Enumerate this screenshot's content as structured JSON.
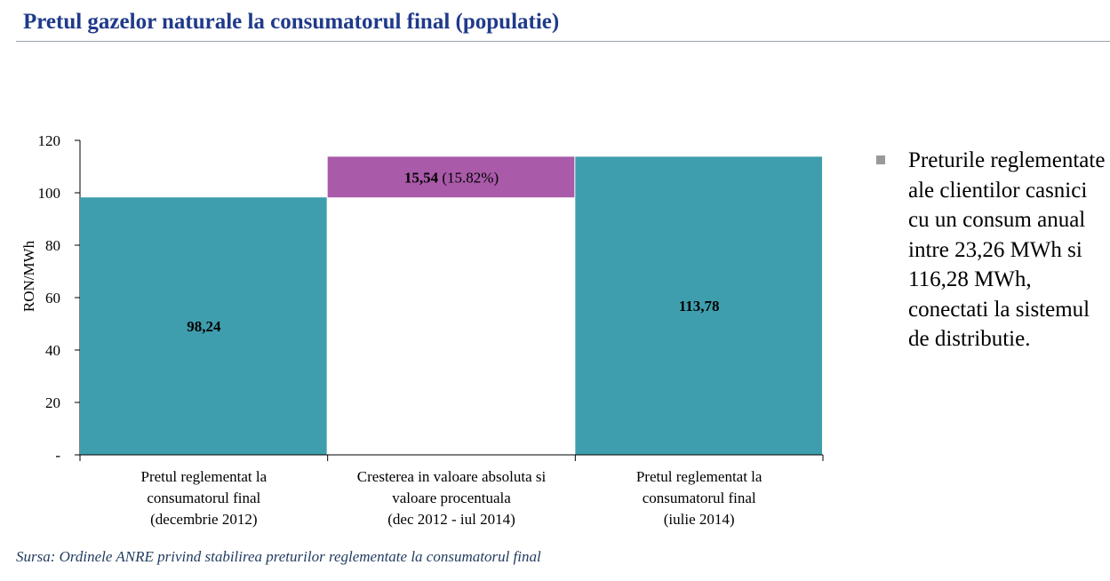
{
  "title": "Pretul gazelor naturale la consumatorul final (populatie)",
  "source": "Sursa: Ordinele ANRE privind stabilirea preturilor reglementate la consumatorul final",
  "note": "Preturile reglementate ale clientilor casnici cu un consum anual intre 23,26 MWh si 116,28 MWh, conectati la sistemul de distributie.",
  "colors": {
    "title": "#1f3a8a",
    "teal": "#3f9eae",
    "purple": "#a95aa9",
    "bullet": "#999999"
  },
  "chart_data": {
    "type": "bar",
    "subtype": "waterfall",
    "ylabel": "RON/MWh",
    "xlabel": "",
    "ylim": [
      0,
      120
    ],
    "yticks": [
      0,
      20,
      40,
      60,
      80,
      100,
      120
    ],
    "ytick_labels": [
      "-",
      "20",
      "40",
      "60",
      "80",
      "100",
      "120"
    ],
    "grid": false,
    "legend": "right",
    "categories": [
      [
        "Pretul reglementat la",
        "consumatorul final",
        "(decembrie 2012)"
      ],
      [
        "Cresterea in valoare absoluta si",
        "valoare procentuala",
        "(dec 2012 - iul 2014)"
      ],
      [
        "Pretul reglementat la",
        "consumatorul final",
        "(iulie 2014)"
      ]
    ],
    "bars": [
      {
        "base": 0,
        "value": 98.24,
        "label": "98,24",
        "color": "#3f9eae"
      },
      {
        "base": 98.24,
        "value": 15.54,
        "label": "15,54",
        "label_suffix": " (15.82%)",
        "color": "#a95aa9"
      },
      {
        "base": 0,
        "value": 113.78,
        "label": "113,78",
        "color": "#3f9eae"
      }
    ]
  }
}
